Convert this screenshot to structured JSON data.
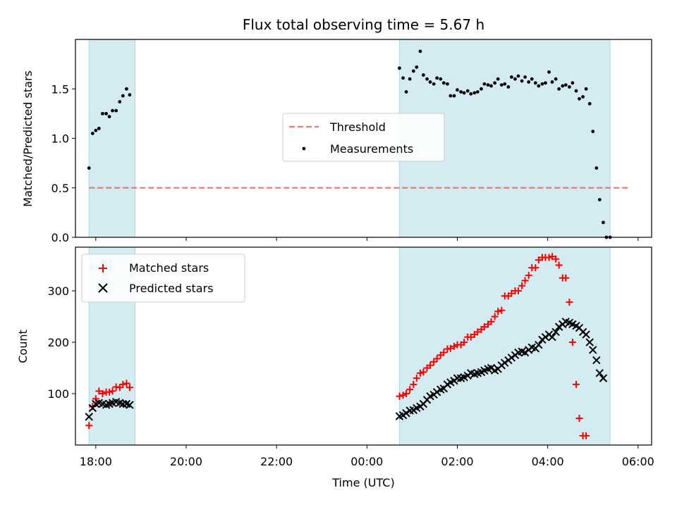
{
  "chart_data": [
    {
      "type": "scatter",
      "title": "Flux total observing time = 5.67 h",
      "ylabel": "Matched/Predicted stars",
      "xlabel": "",
      "xlim_hours": [
        -6.45,
        6.3
      ],
      "ylim": [
        0,
        2.0
      ],
      "yticks": [
        0.0,
        0.5,
        1.0,
        1.5
      ],
      "ytick_labels": [
        "0.0",
        "0.5",
        "1.0",
        "1.5"
      ],
      "shaded_intervals_hours": [
        [
          -6.15,
          -5.13
        ],
        [
          0.72,
          5.38
        ]
      ],
      "shade_color": "#d3ebf1",
      "threshold": {
        "name": "Threshold",
        "value": 0.5,
        "x_range_hours": [
          -6.15,
          5.78
        ],
        "color": "#f07878"
      },
      "legend": {
        "placement": "center",
        "entries": [
          "Threshold",
          "Measurements"
        ]
      },
      "series": [
        {
          "name": "Measurements",
          "color": "#000000",
          "marker": "dot",
          "x_hours": [
            -6.15,
            -6.07,
            -6.0,
            -5.93,
            -5.85,
            -5.77,
            -5.7,
            -5.63,
            -5.55,
            -5.47,
            -5.4,
            -5.32,
            -5.25,
            -5.18,
            0.72,
            0.8,
            0.87,
            0.95,
            1.03,
            1.1,
            1.18,
            1.25,
            1.33,
            1.4,
            1.48,
            1.55,
            1.63,
            1.7,
            1.78,
            1.85,
            1.93,
            2.0,
            2.08,
            2.15,
            2.23,
            2.3,
            2.38,
            2.45,
            2.53,
            2.6,
            2.68,
            2.75,
            2.83,
            2.9,
            2.98,
            3.05,
            3.13,
            3.2,
            3.28,
            3.35,
            3.43,
            3.5,
            3.58,
            3.65,
            3.73,
            3.8,
            3.88,
            3.95,
            4.03,
            4.1,
            4.18,
            4.25,
            4.33,
            4.4,
            4.48,
            4.55,
            4.63,
            4.7,
            4.78,
            4.85,
            4.93,
            5.0,
            5.08,
            5.15,
            5.23,
            5.3,
            5.38,
            5.45,
            5.53,
            5.6,
            5.68,
            5.75
          ],
          "y": [
            0.7,
            1.05,
            1.08,
            1.1,
            1.25,
            1.25,
            1.22,
            1.28,
            1.28,
            1.37,
            1.43,
            1.5,
            1.44,
            null,
            1.71,
            1.61,
            1.47,
            1.6,
            1.68,
            1.72,
            1.88,
            1.64,
            1.6,
            1.57,
            1.55,
            1.61,
            1.6,
            1.56,
            1.55,
            1.43,
            1.43,
            1.49,
            1.47,
            1.46,
            1.48,
            1.45,
            1.46,
            1.47,
            1.5,
            1.55,
            1.54,
            1.53,
            1.56,
            1.6,
            1.54,
            1.55,
            1.52,
            1.62,
            1.6,
            1.63,
            1.58,
            1.62,
            1.57,
            1.6,
            1.56,
            1.53,
            1.55,
            1.56,
            1.67,
            1.57,
            1.6,
            1.5,
            1.53,
            1.54,
            1.52,
            1.56,
            1.48,
            1.4,
            1.42,
            1.5,
            1.35,
            1.07,
            0.7,
            0.38,
            0.15,
            0.0,
            0.0,
            null,
            null,
            null,
            null,
            null
          ]
        }
      ]
    },
    {
      "type": "scatter",
      "title": "",
      "xlabel": "Time (UTC)",
      "ylabel": "Count",
      "xlim_hours": [
        -6.45,
        6.3
      ],
      "ylim": [
        0,
        385
      ],
      "yticks": [
        100,
        200,
        300
      ],
      "xticks_hours": [
        -6,
        -4,
        -2,
        0,
        2,
        4,
        6
      ],
      "xtick_labels": [
        "18:00",
        "20:00",
        "22:00",
        "00:00",
        "02:00",
        "04:00",
        "06:00"
      ],
      "shaded_intervals_hours": [
        [
          -6.15,
          -5.13
        ],
        [
          0.72,
          5.38
        ]
      ],
      "shade_color": "#d3ebf1",
      "legend": {
        "placement": "upper-left",
        "entries": [
          "Matched stars",
          "Predicted stars"
        ]
      },
      "series": [
        {
          "name": "Matched stars",
          "color": "#ff0000",
          "marker": "plus",
          "x_hours": [
            -6.15,
            -6.07,
            -6.0,
            -5.93,
            -5.85,
            -5.77,
            -5.7,
            -5.63,
            -5.55,
            -5.47,
            -5.4,
            -5.32,
            -5.25,
            0.72,
            0.8,
            0.87,
            0.95,
            1.03,
            1.1,
            1.18,
            1.25,
            1.33,
            1.4,
            1.48,
            1.55,
            1.63,
            1.7,
            1.78,
            1.85,
            1.93,
            2.0,
            2.08,
            2.15,
            2.23,
            2.3,
            2.38,
            2.45,
            2.53,
            2.6,
            2.68,
            2.75,
            2.83,
            2.9,
            2.98,
            3.05,
            3.13,
            3.2,
            3.28,
            3.35,
            3.43,
            3.5,
            3.58,
            3.65,
            3.73,
            3.8,
            3.88,
            3.95,
            4.03,
            4.1,
            4.18,
            4.25,
            4.33,
            4.4,
            4.48,
            4.55,
            4.63,
            4.7,
            4.78,
            4.85,
            4.93,
            5.0,
            5.08,
            5.15,
            5.23,
            5.3,
            5.38,
            5.45,
            5.53,
            5.6,
            5.68
          ],
          "y": [
            38,
            75,
            90,
            105,
            100,
            103,
            103,
            105,
            113,
            112,
            118,
            120,
            112,
            95,
            97,
            100,
            108,
            118,
            130,
            140,
            142,
            150,
            155,
            162,
            168,
            175,
            180,
            187,
            188,
            192,
            195,
            195,
            200,
            210,
            210,
            215,
            220,
            225,
            230,
            235,
            240,
            250,
            260,
            262,
            290,
            290,
            295,
            300,
            300,
            310,
            320,
            330,
            345,
            345,
            360,
            365,
            365,
            365,
            367,
            362,
            350,
            325,
            325,
            278,
            200,
            118,
            52,
            18,
            18,
            null,
            null,
            null,
            null,
            null,
            null,
            null,
            null,
            null,
            null,
            null
          ],
          "y_note": "none"
        },
        {
          "name": "Predicted stars",
          "color": "#000000",
          "marker": "cross",
          "x_hours": [
            -6.15,
            -6.07,
            -6.0,
            -5.93,
            -5.85,
            -5.77,
            -5.7,
            -5.63,
            -5.55,
            -5.47,
            -5.4,
            -5.32,
            -5.25,
            0.72,
            0.8,
            0.87,
            0.95,
            1.03,
            1.1,
            1.18,
            1.25,
            1.33,
            1.4,
            1.48,
            1.55,
            1.63,
            1.7,
            1.78,
            1.85,
            1.93,
            2.0,
            2.08,
            2.15,
            2.23,
            2.3,
            2.38,
            2.45,
            2.53,
            2.6,
            2.68,
            2.75,
            2.83,
            2.9,
            2.98,
            3.05,
            3.13,
            3.2,
            3.28,
            3.35,
            3.43,
            3.5,
            3.58,
            3.65,
            3.73,
            3.8,
            3.88,
            3.95,
            4.03,
            4.1,
            4.18,
            4.25,
            4.33,
            4.4,
            4.48,
            4.55,
            4.63,
            4.7,
            4.78,
            4.85,
            4.93,
            5.0,
            5.08,
            5.15,
            5.23,
            5.3,
            5.38,
            5.45,
            5.53,
            5.6,
            5.68
          ],
          "y": [
            55,
            72,
            80,
            82,
            80,
            78,
            80,
            82,
            84,
            82,
            80,
            80,
            78,
            56,
            58,
            62,
            67,
            68,
            72,
            75,
            80,
            88,
            95,
            98,
            103,
            108,
            110,
            118,
            122,
            125,
            130,
            130,
            132,
            135,
            140,
            138,
            140,
            142,
            145,
            148,
            150,
            145,
            148,
            155,
            160,
            165,
            170,
            175,
            180,
            182,
            180,
            185,
            190,
            188,
            195,
            205,
            210,
            215,
            210,
            220,
            230,
            235,
            240,
            238,
            235,
            232,
            228,
            220,
            215,
            200,
            185,
            165,
            140,
            130,
            null,
            null,
            null,
            null,
            null,
            null
          ]
        }
      ]
    }
  ]
}
